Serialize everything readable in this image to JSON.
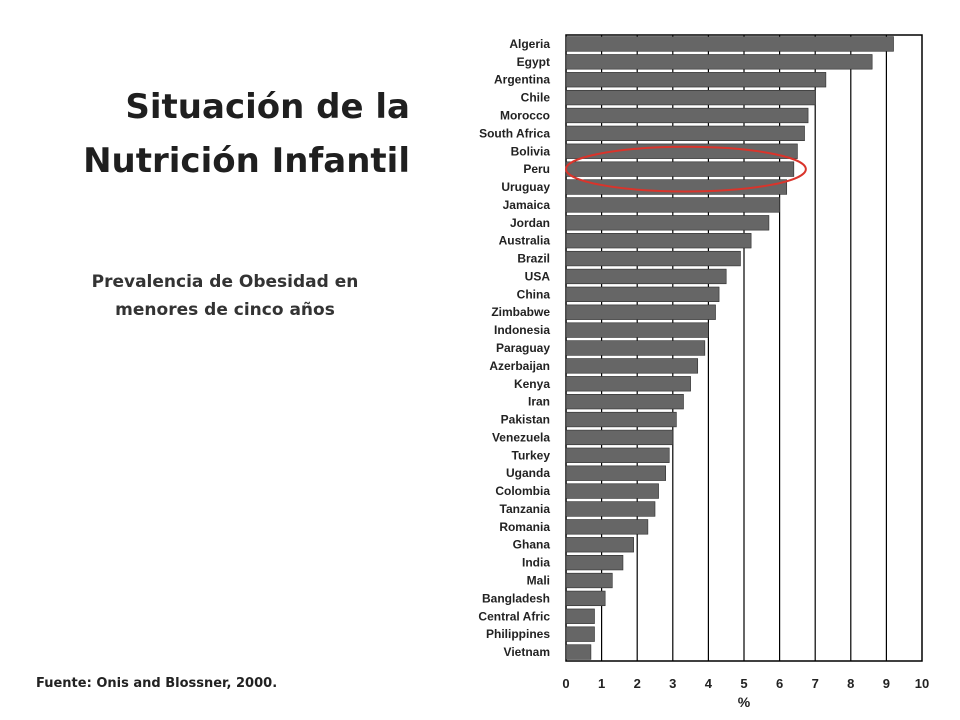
{
  "slide": {
    "title_line1": "Situación de la",
    "title_line2": "Nutrición Infantil",
    "subtitle_line1": "Prevalencia de Obesidad en",
    "subtitle_line2": "menores de cinco años",
    "source": "Fuente: Onis and Blossner, 2000."
  },
  "chart_data": {
    "type": "bar",
    "orientation": "horizontal",
    "categories": [
      "Algeria",
      "Egypt",
      "Argentina",
      "Chile",
      "Morocco",
      "South Africa",
      "Bolivia",
      "Peru",
      "Uruguay",
      "Jamaica",
      "Jordan",
      "Australia",
      "Brazil",
      "USA",
      "China",
      "Zimbabwe",
      "Indonesia",
      "Paraguay",
      "Azerbaijan",
      "Kenya",
      "Iran",
      "Pakistan",
      "Venezuela",
      "Turkey",
      "Uganda",
      "Colombia",
      "Tanzania",
      "Romania",
      "Ghana",
      "India",
      "Mali",
      "Bangladesh",
      "Central Afric",
      "Philippines",
      "Vietnam"
    ],
    "values": [
      9.2,
      8.6,
      7.3,
      7.0,
      6.8,
      6.7,
      6.5,
      6.4,
      6.2,
      6.0,
      5.7,
      5.2,
      4.9,
      4.5,
      4.3,
      4.2,
      4.0,
      3.9,
      3.7,
      3.5,
      3.3,
      3.1,
      3.0,
      2.9,
      2.8,
      2.6,
      2.5,
      2.3,
      1.9,
      1.6,
      1.3,
      1.1,
      0.8,
      0.8,
      0.7
    ],
    "xlabel": "%",
    "xlim": [
      0,
      10
    ],
    "xticks": [
      0,
      1,
      2,
      3,
      4,
      5,
      6,
      7,
      8,
      9,
      10
    ],
    "grid": true,
    "bar_color": "#666666",
    "highlight": {
      "category": "Peru",
      "color": "#d9342b"
    }
  }
}
